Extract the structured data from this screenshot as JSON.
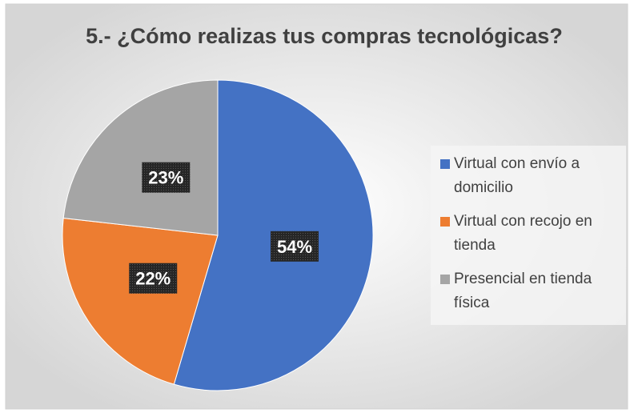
{
  "chart_data": {
    "type": "pie",
    "title": "5.- ¿Cómo realizas tus compras tecnológicas?",
    "categories": [
      "Virtual con envío a domicilio",
      "Virtual con recojo en tienda",
      "Presencial en tienda física"
    ],
    "values": [
      54,
      22,
      23
    ],
    "value_labels": [
      "54%",
      "22%",
      "23%"
    ],
    "colors": [
      "#4472c4",
      "#ed7d31",
      "#a5a5a5"
    ],
    "legend": "right"
  }
}
